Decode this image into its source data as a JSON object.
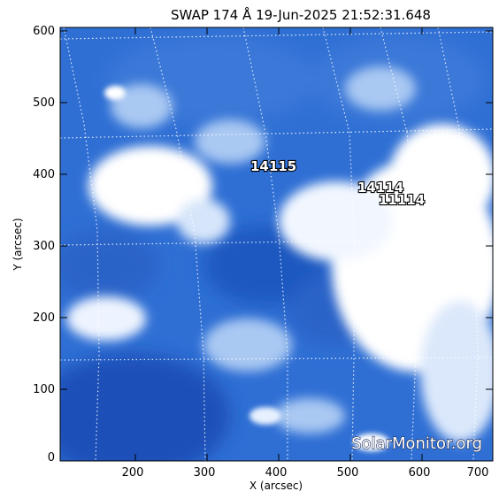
{
  "title": "SWAP 174 Å 19-Jun-2025 21:52:31.648",
  "x_axis": {
    "label": "X (arcsec)",
    "ticks": [
      "200",
      "300",
      "400",
      "500",
      "600",
      "700"
    ]
  },
  "y_axis": {
    "label": "Y (arcsec)",
    "ticks": [
      "0",
      "100",
      "200",
      "300",
      "400",
      "500",
      "600"
    ]
  },
  "active_regions": [
    "14115",
    "14114",
    "11114"
  ],
  "watermark": "SolarMonitor.org",
  "colors": {
    "deep_blue": "#0b3fa8",
    "mid_blue": "#3d7ad8",
    "light_blue": "#a9c8f2",
    "white": "#ffffff",
    "frame": "#000000"
  }
}
